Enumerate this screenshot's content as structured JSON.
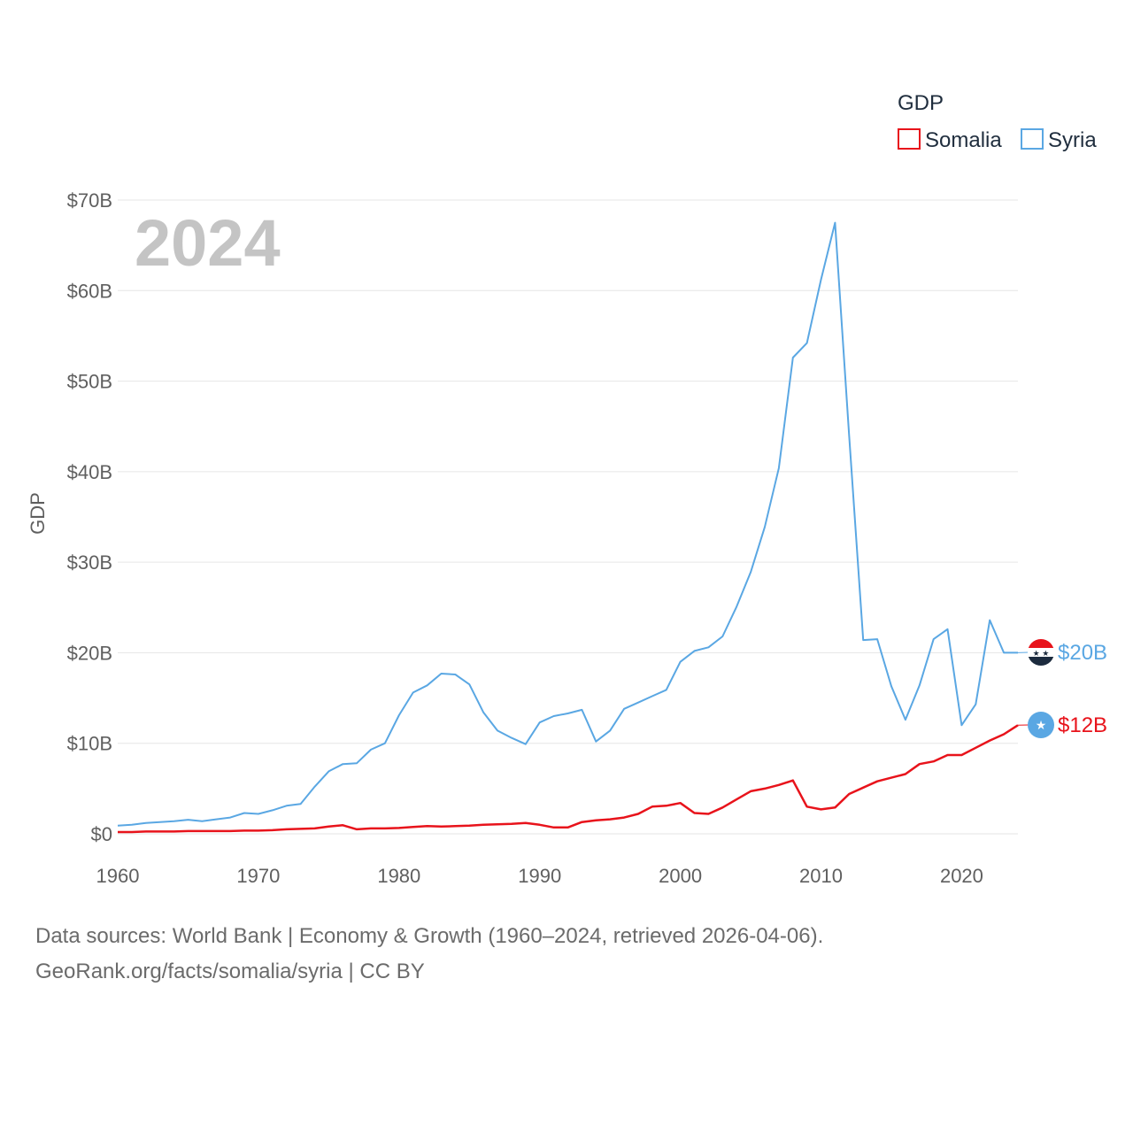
{
  "chart_data": {
    "type": "line",
    "title": "",
    "big_year": "2024",
    "xlabel": "",
    "ylabel": "GDP",
    "legend_title": "GDP",
    "legend_position": "top-right",
    "x_ticks": [
      1960,
      1970,
      1980,
      1990,
      2000,
      2010,
      2020
    ],
    "x_tick_labels": [
      "1960",
      "1970",
      "1980",
      "1990",
      "2000",
      "2010",
      "2020"
    ],
    "xlim": [
      1960,
      2024
    ],
    "y_ticks": [
      0,
      10,
      20,
      30,
      40,
      50,
      60,
      70
    ],
    "y_tick_labels": [
      "$0",
      "$10B",
      "$20B",
      "$30B",
      "$40B",
      "$50B",
      "$60B",
      "$70B"
    ],
    "ylim": [
      0,
      70
    ],
    "y_unit": "billions USD",
    "grid": true,
    "x": [
      1960,
      1961,
      1962,
      1963,
      1964,
      1965,
      1966,
      1967,
      1968,
      1969,
      1970,
      1971,
      1972,
      1973,
      1974,
      1975,
      1976,
      1977,
      1978,
      1979,
      1980,
      1981,
      1982,
      1983,
      1984,
      1985,
      1986,
      1987,
      1988,
      1989,
      1990,
      1991,
      1992,
      1993,
      1994,
      1995,
      1996,
      1997,
      1998,
      1999,
      2000,
      2001,
      2002,
      2003,
      2004,
      2005,
      2006,
      2007,
      2008,
      2009,
      2010,
      2011,
      2012,
      2013,
      2014,
      2015,
      2016,
      2017,
      2018,
      2019,
      2020,
      2021,
      2022,
      2023,
      2024
    ],
    "series": [
      {
        "name": "Somalia",
        "color": "#e8131b",
        "end_label": "$12B",
        "flag": "somalia-flag",
        "values": [
          0.2,
          0.2,
          0.25,
          0.25,
          0.25,
          0.3,
          0.3,
          0.3,
          0.3,
          0.35,
          0.35,
          0.4,
          0.5,
          0.55,
          0.6,
          0.8,
          0.95,
          0.5,
          0.6,
          0.6,
          0.65,
          0.75,
          0.85,
          0.8,
          0.85,
          0.9,
          1.0,
          1.05,
          1.1,
          1.2,
          1.0,
          0.7,
          0.7,
          1.3,
          1.5,
          1.6,
          1.8,
          2.2,
          3.0,
          3.1,
          3.4,
          2.3,
          2.2,
          2.9,
          3.8,
          4.7,
          5.0,
          5.4,
          5.9,
          3.0,
          2.7,
          2.9,
          4.4,
          5.1,
          5.8,
          6.2,
          6.6,
          7.7,
          8.0,
          8.7,
          8.7,
          9.5,
          10.3,
          11.0,
          12.0
        ]
      },
      {
        "name": "Syria",
        "color": "#5aa7e3",
        "end_label": "$20B",
        "flag": "syria-flag",
        "values": [
          0.9,
          1.0,
          1.2,
          1.3,
          1.4,
          1.55,
          1.4,
          1.6,
          1.8,
          2.3,
          2.2,
          2.6,
          3.1,
          3.3,
          5.2,
          6.9,
          7.7,
          7.8,
          9.3,
          10.0,
          13.1,
          15.6,
          16.4,
          17.7,
          17.6,
          16.5,
          13.4,
          11.4,
          10.6,
          9.9,
          12.3,
          13.0,
          13.3,
          13.7,
          10.2,
          11.4,
          13.8,
          14.5,
          15.2,
          15.9,
          19.0,
          20.2,
          20.6,
          21.8,
          25.1,
          28.9,
          33.9,
          40.4,
          52.6,
          54.2,
          61.2,
          67.5,
          44.0,
          21.4,
          21.5,
          16.3,
          12.6,
          16.4,
          21.5,
          22.6,
          12.0,
          14.3,
          23.6,
          20.0,
          20.0
        ]
      }
    ]
  },
  "footer": {
    "line1": "Data sources: World Bank | Economy & Growth (1960–2024, retrieved 2026-04-06).",
    "line2": "GeoRank.org/facts/somalia/syria | CC BY"
  }
}
